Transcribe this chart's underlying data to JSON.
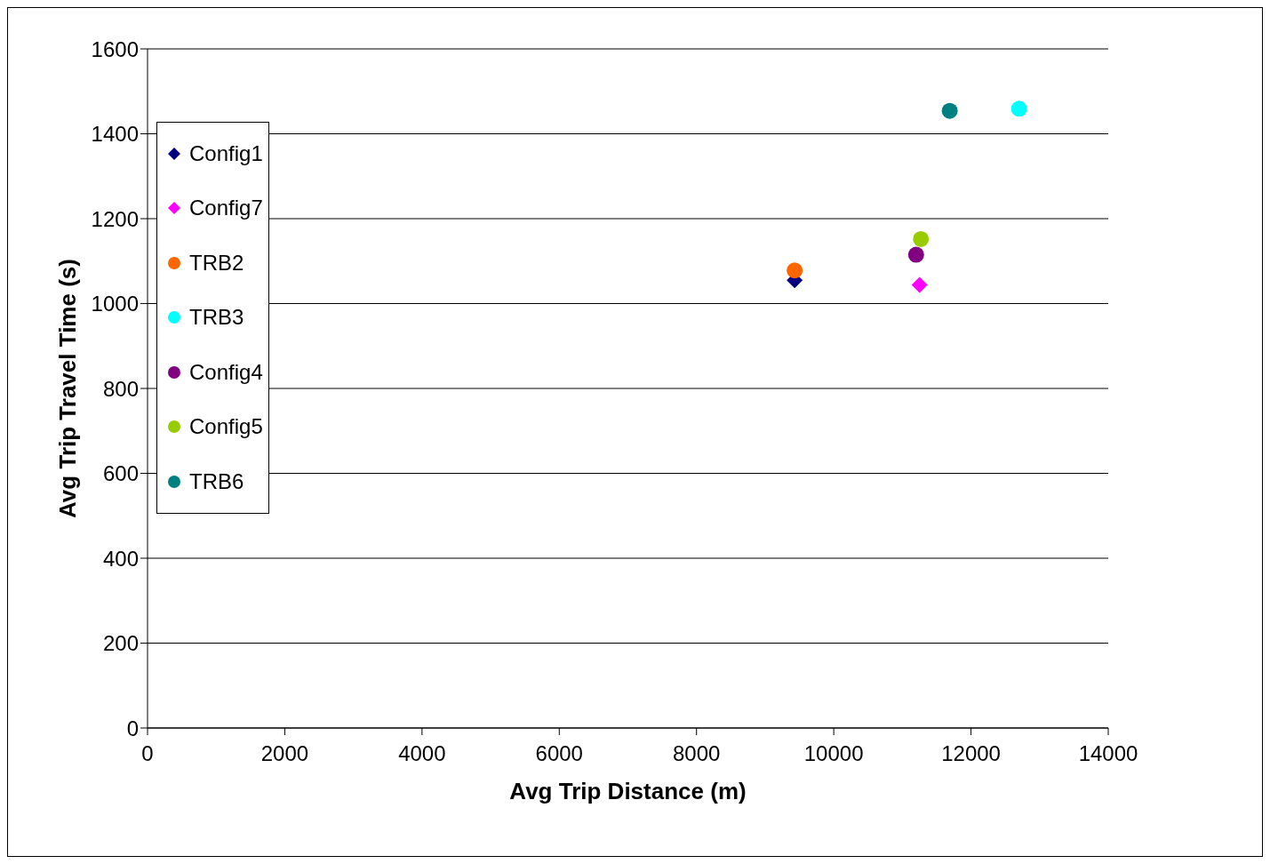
{
  "chart_data": {
    "type": "scatter",
    "xlabel": "Avg Trip Distance (m)",
    "ylabel": "Avg Trip Travel Time (s)",
    "xlim": [
      0,
      14000
    ],
    "xticks": [
      0,
      2000,
      4000,
      6000,
      8000,
      10000,
      12000,
      14000
    ],
    "ylim": [
      0,
      1600
    ],
    "yticks": [
      0,
      200,
      400,
      600,
      800,
      1000,
      1200,
      1400,
      1600
    ],
    "grid": "y",
    "legend": "top left",
    "series": [
      {
        "name": "Config1",
        "color": "#000080",
        "marker": "diamond",
        "x": [
          9430
        ],
        "values": [
          1055
        ]
      },
      {
        "name": "Config7",
        "color": "#ff00ff",
        "marker": "diamond",
        "x": [
          11250
        ],
        "values": [
          1044
        ]
      },
      {
        "name": "TRB2",
        "color": "#ff6600",
        "marker": "circle",
        "x": [
          9430
        ],
        "values": [
          1078
        ]
      },
      {
        "name": "TRB3",
        "color": "#00ffff",
        "marker": "circle",
        "x": [
          12700
        ],
        "values": [
          1459
        ]
      },
      {
        "name": "Config4",
        "color": "#800080",
        "marker": "circle",
        "x": [
          11200
        ],
        "values": [
          1115
        ]
      },
      {
        "name": "Config5",
        "color": "#99cc00",
        "marker": "circle",
        "x": [
          11270
        ],
        "values": [
          1152
        ]
      },
      {
        "name": "TRB6",
        "color": "#008080",
        "marker": "circle",
        "x": [
          11690
        ],
        "values": [
          1454
        ]
      }
    ]
  }
}
